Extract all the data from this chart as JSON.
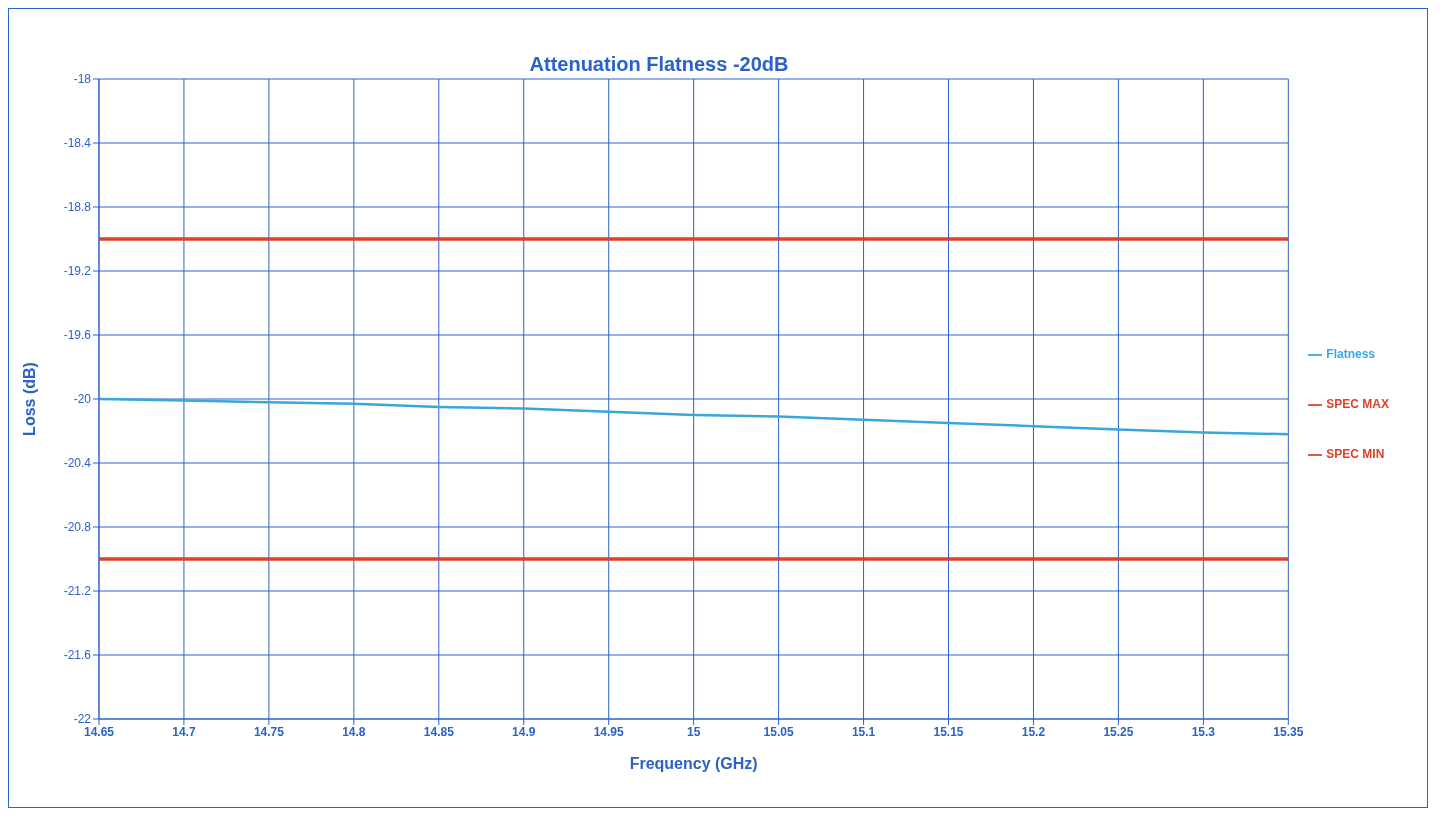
{
  "chart_data": {
    "type": "line",
    "title": "Attenuation Flatness -20dB",
    "xlabel": "Frequency (GHz)",
    "ylabel": "Loss (dB)",
    "x": [
      14.65,
      14.7,
      14.75,
      14.8,
      14.85,
      14.9,
      14.95,
      15,
      15.05,
      15.1,
      15.15,
      15.2,
      15.25,
      15.3,
      15.35
    ],
    "series": [
      {
        "name": "Flatness",
        "color": "#3aa6dd",
        "values": [
          -20.0,
          -20.01,
          -20.02,
          -20.03,
          -20.05,
          -20.06,
          -20.08,
          -20.1,
          -20.11,
          -20.13,
          -20.15,
          -20.17,
          -20.19,
          -20.21,
          -20.22
        ]
      },
      {
        "name": "SPEC MIN",
        "color": "#e0402a",
        "values": [
          -21,
          -21,
          -21,
          -21,
          -21,
          -21,
          -21,
          -21,
          -21,
          -21,
          -21,
          -21,
          -21,
          -21,
          -21
        ]
      },
      {
        "name": "SPEC MAX",
        "color": "#e0402a",
        "values": [
          -19,
          -19,
          -19,
          -19,
          -19,
          -19,
          -19,
          -19,
          -19,
          -19,
          -19,
          -19,
          -19,
          -19,
          -19
        ]
      }
    ],
    "xlim": [
      14.65,
      15.35
    ],
    "xticks": [
      14.65,
      14.7,
      14.75,
      14.8,
      14.85,
      14.9,
      14.95,
      15,
      15.05,
      15.1,
      15.15,
      15.2,
      15.25,
      15.3,
      15.35
    ],
    "ylim": [
      -22,
      -18
    ],
    "yticks": [
      -18,
      -18.4,
      -18.8,
      -19.2,
      -19.6,
      -20,
      -20.4,
      -20.8,
      -21.2,
      -21.6,
      -22
    ],
    "grid": true,
    "legend": "right",
    "marker": "none",
    "line_style": "solid"
  }
}
